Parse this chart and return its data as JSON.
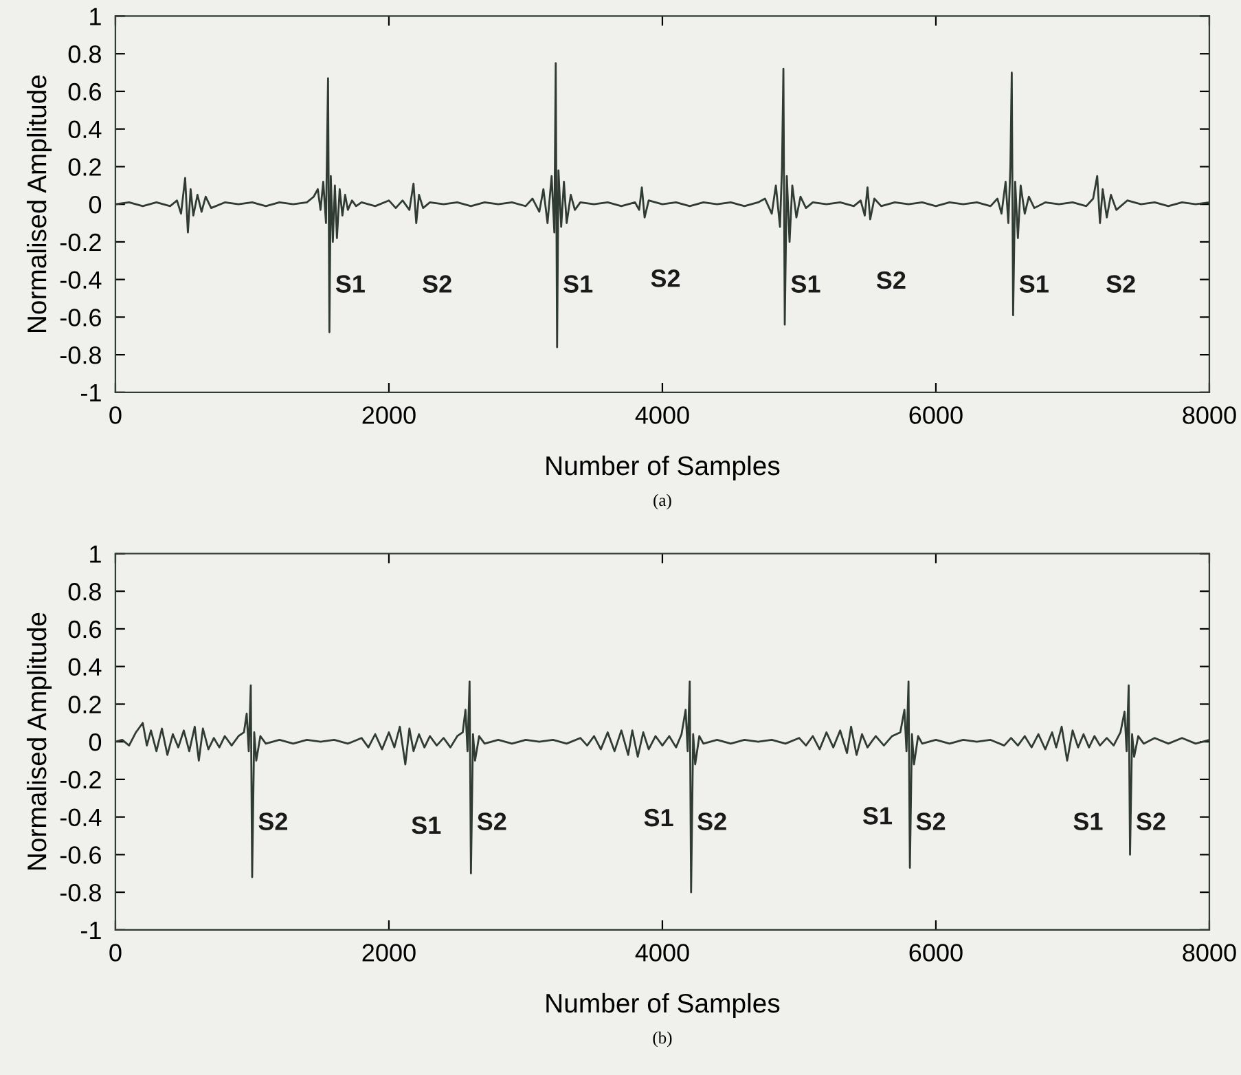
{
  "chart_data": [
    {
      "type": "line",
      "xlabel": "Number of Samples",
      "ylabel": "Normalised Amplitude",
      "xlim": [
        0,
        8000
      ],
      "xticks": [
        0,
        2000,
        4000,
        6000,
        8000
      ],
      "ylim": [
        -1,
        1
      ],
      "yticks": [
        -1,
        -0.8,
        -0.6,
        -0.4,
        -0.2,
        0,
        0.2,
        0.4,
        0.6,
        0.8,
        1
      ],
      "grid": false,
      "legend": false,
      "marker": "none",
      "line_style": "solid",
      "annotations": [
        {
          "text": "S1",
          "x": 1565,
          "y": -0.1
        },
        {
          "text": "S2",
          "x": 2200,
          "y": -0.1
        },
        {
          "text": "S1",
          "x": 3230,
          "y": -0.1
        },
        {
          "text": "S2",
          "x": 3870,
          "y": -0.07
        },
        {
          "text": "S1",
          "x": 4895,
          "y": -0.1
        },
        {
          "text": "S2",
          "x": 5520,
          "y": -0.08
        },
        {
          "text": "S1",
          "x": 6565,
          "y": -0.1
        },
        {
          "text": "S2",
          "x": 7200,
          "y": -0.1
        },
        "(a)"
      ],
      "series": [
        {
          "color": "#2f3b33",
          "x": [
            0,
            100,
            200,
            300,
            400,
            450,
            480,
            510,
            530,
            550,
            570,
            600,
            630,
            660,
            700,
            800,
            900,
            1000,
            1100,
            1200,
            1300,
            1400,
            1450,
            1480,
            1500,
            1520,
            1540,
            1555,
            1565,
            1575,
            1590,
            1605,
            1620,
            1640,
            1660,
            1680,
            1700,
            1730,
            1760,
            1800,
            1900,
            2000,
            2050,
            2100,
            2150,
            2180,
            2200,
            2220,
            2250,
            2300,
            2400,
            2500,
            2600,
            2700,
            2800,
            2900,
            3000,
            3050,
            3100,
            3130,
            3160,
            3190,
            3210,
            3220,
            3230,
            3240,
            3260,
            3280,
            3300,
            3330,
            3360,
            3400,
            3500,
            3600,
            3700,
            3800,
            3830,
            3850,
            3870,
            3900,
            4000,
            4100,
            4200,
            4300,
            4400,
            4500,
            4600,
            4700,
            4750,
            4800,
            4830,
            4860,
            4875,
            4885,
            4895,
            4910,
            4930,
            4950,
            4980,
            5010,
            5050,
            5100,
            5200,
            5300,
            5400,
            5450,
            5480,
            5500,
            5520,
            5550,
            5600,
            5700,
            5800,
            5900,
            6000,
            6100,
            6200,
            6300,
            6400,
            6450,
            6480,
            6510,
            6530,
            6545,
            6555,
            6565,
            6580,
            6600,
            6620,
            6650,
            6680,
            6720,
            6800,
            6900,
            7000,
            7100,
            7150,
            7180,
            7200,
            7220,
            7250,
            7280,
            7320,
            7400,
            7500,
            7600,
            7700,
            7800,
            7900,
            8000
          ],
          "values": [
            0,
            0.01,
            -0.01,
            0.01,
            -0.01,
            0.02,
            -0.05,
            0.14,
            -0.15,
            0.08,
            -0.06,
            0.05,
            -0.04,
            0.04,
            -0.02,
            0.01,
            0,
            0.01,
            -0.01,
            0.01,
            0,
            0.01,
            0.04,
            0.08,
            -0.03,
            0.12,
            -0.1,
            0.67,
            -0.68,
            0.15,
            -0.2,
            0.1,
            -0.18,
            0.08,
            -0.06,
            0.05,
            -0.03,
            0.02,
            -0.01,
            0.01,
            -0.01,
            0.02,
            -0.02,
            0.02,
            -0.03,
            0.11,
            -0.1,
            0.05,
            -0.02,
            0.01,
            0,
            0.01,
            -0.01,
            0.01,
            0,
            0.01,
            -0.01,
            0.03,
            -0.04,
            0.08,
            -0.1,
            0.15,
            -0.15,
            0.75,
            -0.76,
            0.18,
            -0.12,
            0.12,
            -0.1,
            0.05,
            -0.03,
            0.01,
            0,
            0.01,
            -0.01,
            0.01,
            -0.03,
            0.09,
            -0.07,
            0.02,
            0,
            0.01,
            -0.01,
            0.01,
            0,
            0.01,
            -0.01,
            0.01,
            0.03,
            -0.05,
            0.1,
            -0.12,
            0.2,
            0.72,
            -0.64,
            0.15,
            -0.2,
            0.1,
            -0.07,
            0.04,
            -0.02,
            0.01,
            0,
            0.01,
            -0.01,
            0.02,
            -0.06,
            0.09,
            -0.08,
            0.03,
            -0.01,
            0.01,
            0,
            0.01,
            -0.01,
            0.01,
            0,
            0.01,
            -0.01,
            0.03,
            -0.05,
            0.12,
            -0.1,
            0.2,
            0.7,
            -0.59,
            0.12,
            -0.18,
            0.1,
            -0.05,
            0.04,
            -0.02,
            0.01,
            0,
            0.01,
            -0.01,
            0.03,
            0.15,
            -0.1,
            0.08,
            -0.07,
            0.05,
            -0.03,
            0.02,
            0,
            0.01,
            -0.01,
            0.01,
            0,
            0.01
          ]
        }
      ]
    },
    {
      "type": "line",
      "xlabel": "Number of Samples",
      "ylabel": "Normalised Amplitude",
      "xlim": [
        0,
        8000
      ],
      "xticks": [
        0,
        2000,
        4000,
        6000,
        8000
      ],
      "ylim": [
        -1,
        1
      ],
      "yticks": [
        -1,
        -0.8,
        -0.6,
        -0.4,
        -0.2,
        0,
        0.2,
        0.4,
        0.6,
        0.8,
        1
      ],
      "grid": false,
      "legend": false,
      "marker": "none",
      "line_style": "solid",
      "annotations": [
        {
          "text": "S2",
          "x": 1000,
          "y": -0.1
        },
        {
          "text": "S1",
          "x": 2120,
          "y": -0.12
        },
        {
          "text": "S2",
          "x": 2600,
          "y": -0.1
        },
        {
          "text": "S1",
          "x": 3820,
          "y": -0.08
        },
        {
          "text": "S2",
          "x": 4210,
          "y": -0.1
        },
        {
          "text": "S1",
          "x": 5420,
          "y": -0.07
        },
        {
          "text": "S2",
          "x": 5810,
          "y": -0.1
        },
        {
          "text": "S1",
          "x": 6960,
          "y": -0.1
        },
        {
          "text": "S2",
          "x": 7420,
          "y": -0.1
        },
        "(b)"
      ],
      "series": [
        {
          "color": "#2f3b33",
          "x": [
            0,
            50,
            100,
            150,
            200,
            230,
            260,
            300,
            340,
            380,
            420,
            460,
            500,
            540,
            580,
            610,
            640,
            680,
            720,
            760,
            800,
            850,
            900,
            940,
            960,
            975,
            990,
            1000,
            1015,
            1030,
            1060,
            1100,
            1200,
            1300,
            1400,
            1500,
            1600,
            1700,
            1800,
            1850,
            1900,
            1950,
            2000,
            2040,
            2080,
            2120,
            2150,
            2180,
            2220,
            2260,
            2300,
            2350,
            2400,
            2450,
            2500,
            2540,
            2560,
            2575,
            2590,
            2600,
            2615,
            2630,
            2660,
            2700,
            2800,
            2900,
            3000,
            3100,
            3200,
            3300,
            3400,
            3450,
            3500,
            3550,
            3600,
            3650,
            3700,
            3750,
            3780,
            3820,
            3860,
            3900,
            3950,
            4000,
            4050,
            4100,
            4140,
            4170,
            4185,
            4200,
            4210,
            4225,
            4240,
            4270,
            4300,
            4400,
            4500,
            4600,
            4700,
            4800,
            4900,
            5000,
            5050,
            5100,
            5150,
            5200,
            5250,
            5300,
            5350,
            5380,
            5420,
            5460,
            5500,
            5560,
            5620,
            5680,
            5740,
            5770,
            5785,
            5800,
            5810,
            5825,
            5840,
            5870,
            5900,
            6000,
            6100,
            6200,
            6300,
            6400,
            6500,
            6550,
            6600,
            6650,
            6700,
            6750,
            6800,
            6850,
            6880,
            6920,
            6960,
            7000,
            7040,
            7080,
            7120,
            7160,
            7200,
            7250,
            7300,
            7350,
            7380,
            7395,
            7410,
            7420,
            7435,
            7450,
            7480,
            7520,
            7600,
            7700,
            7800,
            7900,
            8000
          ],
          "values": [
            0,
            0.01,
            -0.02,
            0.05,
            0.1,
            -0.02,
            0.06,
            -0.05,
            0.07,
            -0.07,
            0.04,
            -0.03,
            0.06,
            -0.05,
            0.08,
            -0.1,
            0.07,
            -0.04,
            0.02,
            -0.03,
            0.03,
            -0.02,
            0.03,
            0.05,
            0.15,
            -0.05,
            0.3,
            -0.72,
            0.05,
            -0.1,
            0.03,
            -0.01,
            0.01,
            -0.01,
            0.01,
            0,
            0.01,
            -0.01,
            0.02,
            -0.03,
            0.04,
            -0.04,
            0.05,
            -0.03,
            0.08,
            -0.12,
            0.07,
            -0.05,
            0.04,
            -0.03,
            0.03,
            -0.02,
            0.02,
            -0.03,
            0.03,
            0.05,
            0.17,
            -0.05,
            0.32,
            -0.7,
            0.04,
            -0.1,
            0.03,
            -0.01,
            0.01,
            -0.01,
            0.01,
            0,
            0.01,
            -0.01,
            0.02,
            -0.02,
            0.03,
            -0.04,
            0.05,
            -0.05,
            0.06,
            -0.07,
            0.06,
            -0.08,
            0.05,
            -0.04,
            0.03,
            -0.02,
            0.03,
            -0.03,
            0.04,
            0.17,
            -0.05,
            0.32,
            -0.8,
            0.04,
            -0.12,
            0.03,
            -0.01,
            0.01,
            -0.01,
            0.01,
            0,
            0.01,
            -0.01,
            0.02,
            -0.02,
            0.03,
            -0.04,
            0.05,
            -0.03,
            0.06,
            -0.06,
            0.08,
            -0.07,
            0.04,
            -0.03,
            0.03,
            -0.02,
            0.03,
            0.05,
            0.17,
            -0.05,
            0.32,
            -0.67,
            0.04,
            -0.12,
            0.03,
            -0.01,
            0.01,
            -0.01,
            0.01,
            0,
            0.01,
            -0.02,
            0.02,
            -0.02,
            0.03,
            -0.03,
            0.04,
            -0.04,
            0.05,
            -0.03,
            0.08,
            -0.1,
            0.06,
            -0.03,
            0.04,
            -0.03,
            0.03,
            -0.02,
            0.02,
            -0.02,
            0.05,
            0.16,
            -0.05,
            0.3,
            -0.6,
            0.04,
            -0.08,
            0.03,
            -0.01,
            0.02,
            -0.01,
            0.02,
            -0.01,
            0.01
          ]
        }
      ]
    }
  ]
}
